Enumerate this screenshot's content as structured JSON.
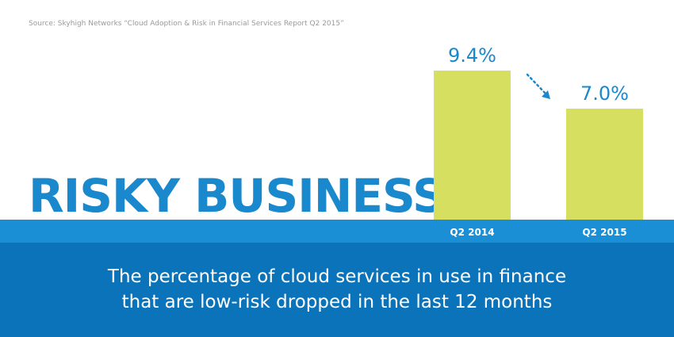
{
  "source": "Source: Skyhigh Networks “Cloud Adoption & Risk in Financial Services Report Q2 2015”",
  "headline": "RISKY BUSINESS",
  "caption": {
    "line1": "The percentage of cloud services in use in finance",
    "line2": "that are low-risk dropped in the last 12 months"
  },
  "colors": {
    "bar": "#d6df60",
    "accent": "#1a88cc",
    "band_light": "#1b8fd6",
    "band_dark": "#0b73ba"
  },
  "chart_data": {
    "type": "bar",
    "categories": [
      "Q2 2014",
      "Q2 2015"
    ],
    "values": [
      9.4,
      7.0
    ],
    "value_labels": [
      "9.4%",
      "7.0%"
    ],
    "trend": "down"
  }
}
